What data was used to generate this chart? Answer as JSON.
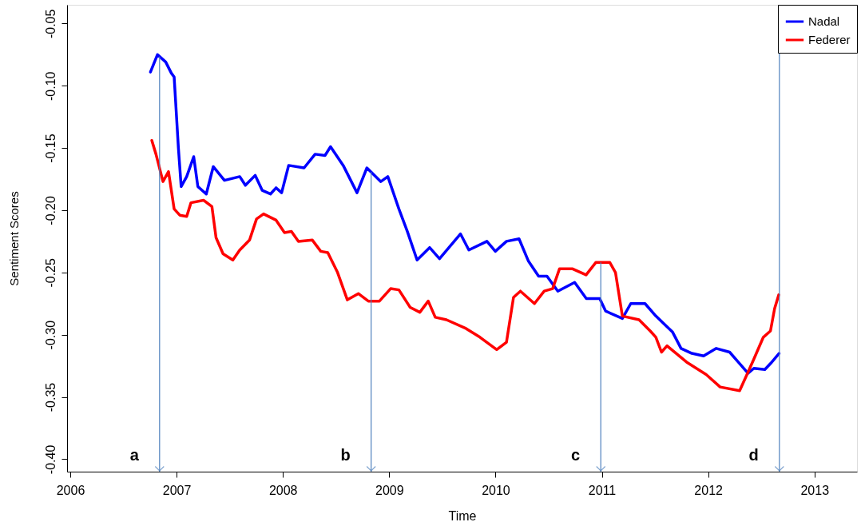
{
  "chart_data": {
    "type": "line",
    "xlabel": "Time",
    "ylabel": "Sentiment Scores",
    "xlim": [
      2005.97,
      2013.4
    ],
    "ylim": [
      -0.41,
      -0.035
    ],
    "xticks": [
      2006,
      2007,
      2008,
      2009,
      2010,
      2011,
      2012,
      2013
    ],
    "yticks": [
      {
        "value": -0.05,
        "label": "-0.05"
      },
      {
        "value": -0.1,
        "label": "-0.10"
      },
      {
        "value": -0.15,
        "label": "-0.15"
      },
      {
        "value": -0.2,
        "label": "-0.20"
      },
      {
        "value": -0.25,
        "label": "-0.25"
      },
      {
        "value": -0.3,
        "label": "-0.30"
      },
      {
        "value": -0.35,
        "label": "-0.35"
      },
      {
        "value": -0.4,
        "label": "-0.40"
      }
    ],
    "grid": false,
    "legend": "top right",
    "marker": "none",
    "line_style": "solid",
    "series": [
      {
        "name": "Nadal",
        "color": "#0000ff",
        "x": [
          2006.754,
          2006.82,
          2006.898,
          2006.951,
          2006.977,
          2006.991,
          2007.017,
          2007.043,
          2007.095,
          2007.161,
          2007.2,
          2007.279,
          2007.345,
          2007.45,
          2007.594,
          2007.647,
          2007.739,
          2007.805,
          2007.883,
          2007.936,
          2007.988,
          2008.054,
          2008.199,
          2008.303,
          2008.396,
          2008.448,
          2008.567,
          2008.697,
          2008.79,
          2008.921,
          2008.987,
          2009.091,
          2009.17,
          2009.262,
          2009.38,
          2009.473,
          2009.67,
          2009.749,
          2009.919,
          2009.998,
          2010.103,
          2010.221,
          2010.31,
          2010.405,
          2010.484,
          2010.586,
          2010.744,
          2010.854,
          2010.98,
          2011.035,
          2011.193,
          2011.272,
          2011.406,
          2011.508,
          2011.666,
          2011.745,
          2011.847,
          2011.957,
          2012.076,
          2012.202,
          2012.273,
          2012.375,
          2012.43,
          2012.533,
          2012.588,
          2012.667
        ],
        "values": [
          -0.089,
          -0.075,
          -0.081,
          -0.09,
          -0.093,
          -0.113,
          -0.15,
          -0.181,
          -0.173,
          -0.157,
          -0.181,
          -0.187,
          -0.165,
          -0.176,
          -0.173,
          -0.18,
          -0.172,
          -0.184,
          -0.187,
          -0.182,
          -0.186,
          -0.164,
          -0.166,
          -0.155,
          -0.156,
          -0.149,
          -0.164,
          -0.186,
          -0.166,
          -0.177,
          -0.173,
          -0.199,
          -0.217,
          -0.24,
          -0.23,
          -0.239,
          -0.219,
          -0.232,
          -0.225,
          -0.233,
          -0.225,
          -0.223,
          -0.241,
          -0.253,
          -0.253,
          -0.265,
          -0.258,
          -0.271,
          -0.271,
          -0.281,
          -0.287,
          -0.275,
          -0.275,
          -0.285,
          -0.298,
          -0.311,
          -0.315,
          -0.317,
          -0.311,
          -0.314,
          -0.321,
          -0.331,
          -0.327,
          -0.328,
          -0.323,
          -0.315
        ]
      },
      {
        "name": "Federer",
        "color": "#ff0000",
        "x": [
          2006.767,
          2006.806,
          2006.872,
          2006.924,
          2006.977,
          2007.03,
          2007.095,
          2007.135,
          2007.253,
          2007.332,
          2007.371,
          2007.437,
          2007.529,
          2007.594,
          2007.686,
          2007.752,
          2007.818,
          2007.936,
          2008.015,
          2008.08,
          2008.146,
          2008.277,
          2008.356,
          2008.422,
          2008.514,
          2008.606,
          2008.711,
          2008.803,
          2008.908,
          2009.013,
          2009.091,
          2009.197,
          2009.288,
          2009.367,
          2009.433,
          2009.538,
          2009.722,
          2009.853,
          2010.011,
          2010.103,
          2010.169,
          2010.234,
          2010.366,
          2010.458,
          2010.537,
          2010.602,
          2010.721,
          2010.852,
          2010.943,
          2011.075,
          2011.128,
          2011.193,
          2011.35,
          2011.455,
          2011.508,
          2011.561,
          2011.613,
          2011.797,
          2011.981,
          2012.113,
          2012.296,
          2012.375,
          2012.428,
          2012.519,
          2012.586,
          2012.625,
          2012.664
        ],
        "values": [
          -0.144,
          -0.155,
          -0.177,
          -0.169,
          -0.199,
          -0.204,
          -0.205,
          -0.194,
          -0.192,
          -0.197,
          -0.222,
          -0.235,
          -0.24,
          -0.232,
          -0.224,
          -0.207,
          -0.203,
          -0.208,
          -0.218,
          -0.217,
          -0.225,
          -0.224,
          -0.233,
          -0.234,
          -0.25,
          -0.272,
          -0.267,
          -0.273,
          -0.273,
          -0.263,
          -0.264,
          -0.278,
          -0.282,
          -0.273,
          -0.286,
          -0.288,
          -0.295,
          -0.302,
          -0.312,
          -0.306,
          -0.27,
          -0.265,
          -0.275,
          -0.265,
          -0.263,
          -0.247,
          -0.247,
          -0.252,
          -0.242,
          -0.242,
          -0.25,
          -0.285,
          -0.288,
          -0.297,
          -0.302,
          -0.314,
          -0.309,
          -0.322,
          -0.332,
          -0.342,
          -0.345,
          -0.33,
          -0.32,
          -0.302,
          -0.297,
          -0.279,
          -0.268
        ]
      }
    ],
    "ref_lines": [
      {
        "axis": "x",
        "value": 2006.84,
        "label": "a",
        "color": "#4f81bd"
      },
      {
        "axis": "x",
        "value": 2008.83,
        "label": "b",
        "color": "#4f81bd"
      },
      {
        "axis": "x",
        "value": 2010.99,
        "label": "c",
        "color": "#4f81bd"
      },
      {
        "axis": "x",
        "value": 2012.67,
        "label": "d",
        "color": "#4f81bd"
      }
    ]
  }
}
